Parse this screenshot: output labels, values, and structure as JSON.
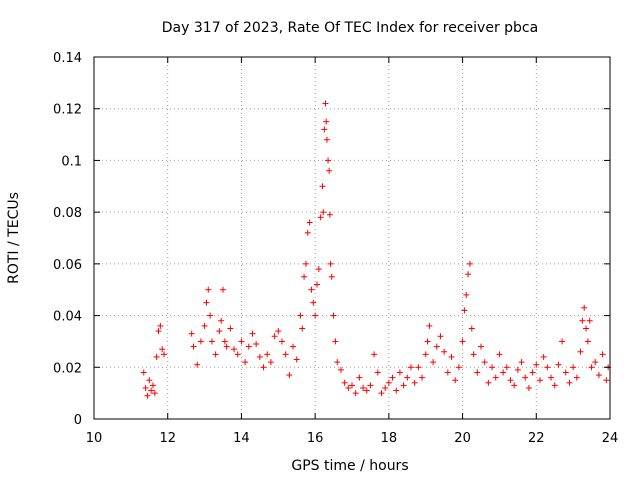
{
  "chart_data": {
    "type": "scatter",
    "title": "Day 317 of 2023, Rate Of TEC Index for receiver pbca",
    "xlabel": "GPS time / hours",
    "ylabel": "ROTI / TECUs",
    "xlim": [
      10,
      24
    ],
    "ylim": [
      0,
      0.14
    ],
    "xticks": [
      "10",
      "12",
      "14",
      "16",
      "18",
      "20",
      "22",
      "24"
    ],
    "yticks": [
      "0",
      "0.02",
      "0.04",
      "0.06",
      "0.08",
      "0.1",
      "0.12",
      "0.14"
    ],
    "grid": true,
    "marker": "plus",
    "color": "#ff0000",
    "series": [
      {
        "x": [
          11.35,
          11.4,
          11.45,
          11.5,
          11.55,
          11.6,
          11.65,
          11.7,
          11.75,
          11.8,
          11.85,
          11.9,
          12.65,
          12.7,
          12.8,
          12.9,
          13.0,
          13.05,
          13.1,
          13.15,
          13.2,
          13.3,
          13.4,
          13.45,
          13.5,
          13.55,
          13.6,
          13.7,
          13.8,
          13.9,
          14.0,
          14.1,
          14.2,
          14.3,
          14.4,
          14.5,
          14.6,
          14.7,
          14.8,
          14.9,
          15.0,
          15.1,
          15.2,
          15.3,
          15.4,
          15.5,
          15.6,
          15.65,
          15.7,
          15.75,
          15.8,
          15.85,
          15.9,
          15.95,
          16.0,
          16.05,
          16.1,
          16.15,
          16.2,
          16.22,
          16.25,
          16.28,
          16.3,
          16.32,
          16.35,
          16.38,
          16.4,
          16.42,
          16.45,
          16.5,
          16.55,
          16.6,
          16.7,
          16.8,
          16.9,
          17.0,
          17.1,
          17.2,
          17.3,
          17.4,
          17.5,
          17.6,
          17.7,
          17.8,
          17.9,
          18.0,
          18.1,
          18.2,
          18.3,
          18.4,
          18.5,
          18.6,
          18.7,
          18.8,
          18.9,
          19.0,
          19.05,
          19.1,
          19.2,
          19.3,
          19.4,
          19.5,
          19.6,
          19.7,
          19.8,
          19.9,
          20.0,
          20.05,
          20.1,
          20.15,
          20.2,
          20.25,
          20.3,
          20.4,
          20.5,
          20.6,
          20.7,
          20.8,
          20.9,
          21.0,
          21.1,
          21.2,
          21.3,
          21.4,
          21.5,
          21.6,
          21.7,
          21.8,
          21.9,
          22.0,
          22.1,
          22.2,
          22.3,
          22.4,
          22.5,
          22.6,
          22.7,
          22.8,
          22.9,
          23.0,
          23.1,
          23.2,
          23.25,
          23.3,
          23.35,
          23.4,
          23.45,
          23.5,
          23.6,
          23.7,
          23.8,
          23.9,
          23.95
        ],
        "y": [
          0.018,
          0.012,
          0.009,
          0.015,
          0.011,
          0.013,
          0.01,
          0.024,
          0.034,
          0.036,
          0.027,
          0.025,
          0.033,
          0.028,
          0.021,
          0.03,
          0.036,
          0.045,
          0.05,
          0.04,
          0.03,
          0.025,
          0.034,
          0.038,
          0.05,
          0.03,
          0.028,
          0.035,
          0.027,
          0.025,
          0.03,
          0.022,
          0.028,
          0.033,
          0.029,
          0.024,
          0.02,
          0.025,
          0.022,
          0.032,
          0.034,
          0.03,
          0.025,
          0.017,
          0.028,
          0.023,
          0.04,
          0.035,
          0.055,
          0.06,
          0.072,
          0.076,
          0.05,
          0.045,
          0.04,
          0.052,
          0.058,
          0.078,
          0.09,
          0.08,
          0.112,
          0.122,
          0.115,
          0.108,
          0.1,
          0.096,
          0.079,
          0.06,
          0.055,
          0.04,
          0.03,
          0.022,
          0.019,
          0.014,
          0.012,
          0.013,
          0.01,
          0.016,
          0.012,
          0.011,
          0.013,
          0.025,
          0.018,
          0.01,
          0.012,
          0.014,
          0.016,
          0.011,
          0.018,
          0.013,
          0.016,
          0.02,
          0.014,
          0.02,
          0.016,
          0.025,
          0.03,
          0.036,
          0.022,
          0.028,
          0.032,
          0.026,
          0.018,
          0.024,
          0.015,
          0.02,
          0.03,
          0.042,
          0.048,
          0.056,
          0.06,
          0.035,
          0.025,
          0.018,
          0.028,
          0.022,
          0.014,
          0.02,
          0.016,
          0.025,
          0.018,
          0.02,
          0.015,
          0.013,
          0.019,
          0.022,
          0.016,
          0.012,
          0.018,
          0.021,
          0.015,
          0.024,
          0.02,
          0.016,
          0.013,
          0.021,
          0.03,
          0.018,
          0.014,
          0.02,
          0.016,
          0.026,
          0.038,
          0.043,
          0.035,
          0.03,
          0.038,
          0.02,
          0.022,
          0.017,
          0.025,
          0.015,
          0.02
        ]
      }
    ]
  }
}
